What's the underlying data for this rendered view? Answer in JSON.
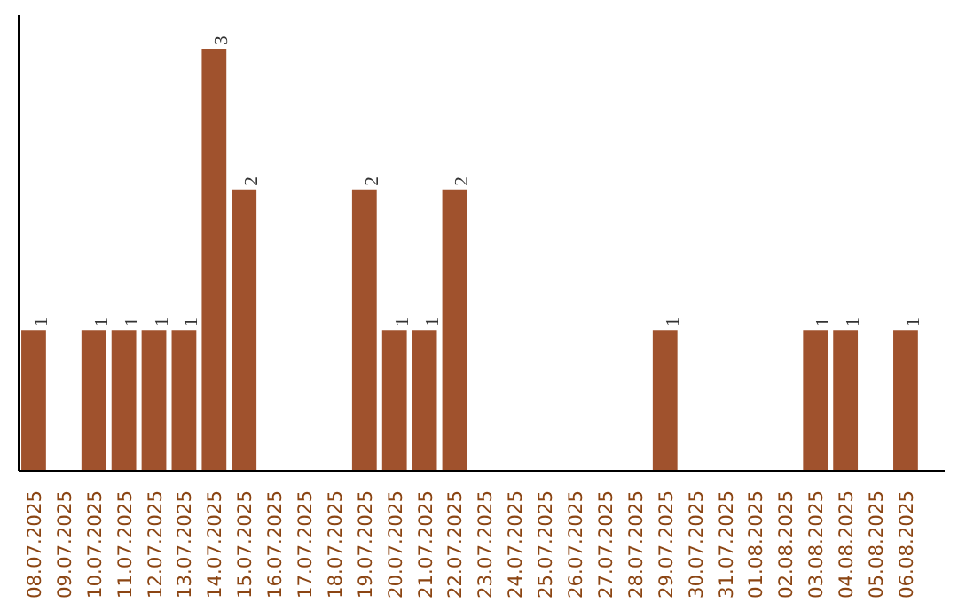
{
  "chart_data": {
    "type": "bar",
    "categories": [
      "08.07.2025",
      "09.07.2025",
      "10.07.2025",
      "11.07.2025",
      "12.07.2025",
      "13.07.2025",
      "14.07.2025",
      "15.07.2025",
      "16.07.2025",
      "17.07.2025",
      "18.07.2025",
      "19.07.2025",
      "20.07.2025",
      "21.07.2025",
      "22.07.2025",
      "23.07.2025",
      "24.07.2025",
      "25.07.2025",
      "26.07.2025",
      "27.07.2025",
      "28.07.2025",
      "29.07.2025",
      "30.07.2025",
      "31.07.2025",
      "01.08.2025",
      "02.08.2025",
      "03.08.2025",
      "04.08.2025",
      "05.08.2025",
      "06.08.2025"
    ],
    "values": [
      1,
      0,
      1,
      1,
      1,
      1,
      3,
      2,
      0,
      0,
      0,
      2,
      1,
      1,
      2,
      0,
      0,
      0,
      0,
      0,
      0,
      1,
      0,
      0,
      0,
      0,
      1,
      1,
      0,
      1
    ],
    "value_labels": [
      "1",
      null,
      "1",
      "1",
      "1",
      "1",
      "3",
      "2",
      null,
      null,
      null,
      "2",
      "1",
      "1",
      "2",
      null,
      null,
      null,
      null,
      null,
      null,
      "1",
      null,
      null,
      null,
      null,
      "1",
      "1",
      null,
      "1"
    ],
    "color": "#a0522d",
    "grid": false
  }
}
